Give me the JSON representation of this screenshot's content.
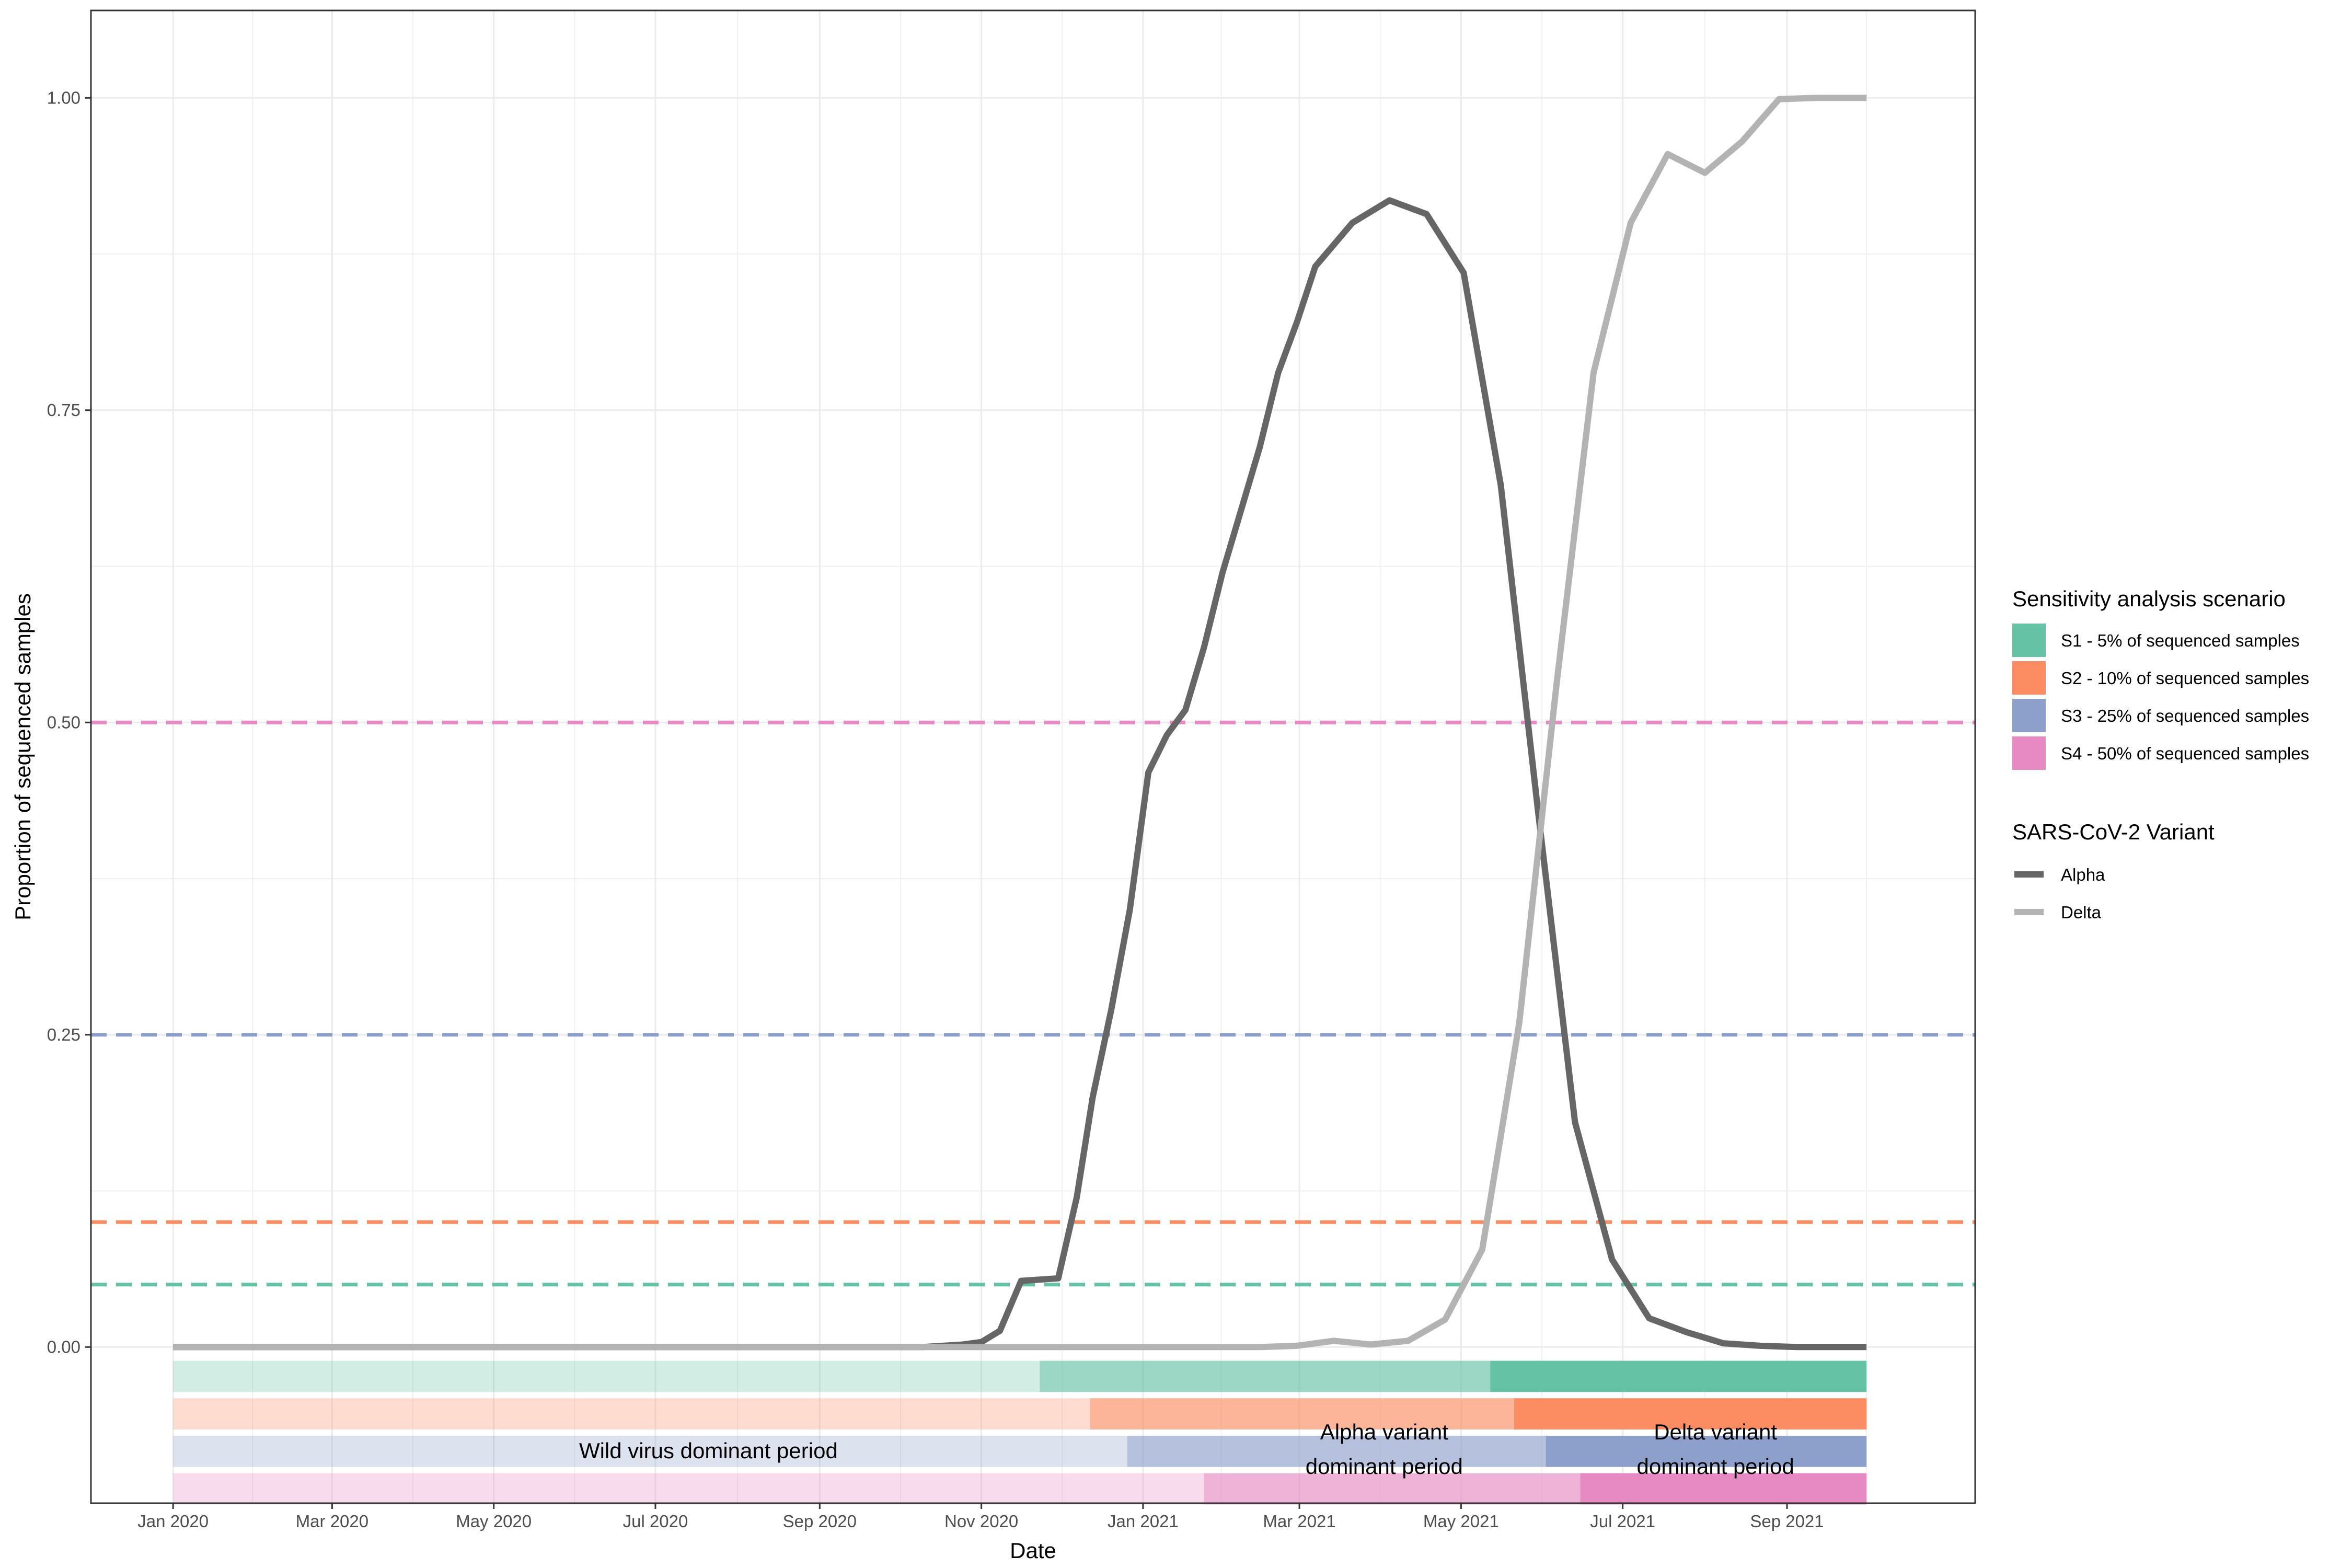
{
  "chart_data": {
    "type": "line",
    "title": "",
    "xlabel": "Date",
    "ylabel": "Proportion of sequenced samples",
    "x_range": [
      "2019-12-01",
      "2021-11-11"
    ],
    "ylim": [
      -0.125,
      1.07
    ],
    "grid": true,
    "legend_position": "right",
    "x_ticks": [
      "2020-01-01",
      "2020-03-01",
      "2020-05-01",
      "2020-07-01",
      "2020-09-01",
      "2020-11-01",
      "2021-01-01",
      "2021-03-01",
      "2021-05-01",
      "2021-07-01",
      "2021-09-01"
    ],
    "x_tick_labels": [
      "Jan 2020",
      "Mar 2020",
      "May 2020",
      "Jul 2020",
      "Sep 2020",
      "Nov 2020",
      "Jan 2021",
      "Mar 2021",
      "May 2021",
      "Jul 2021",
      "Sep 2021"
    ],
    "y_ticks": [
      0,
      0.25,
      0.5,
      0.75,
      1.0
    ],
    "y_tick_labels": [
      "0.00",
      "0.25",
      "0.50",
      "0.75",
      "1.00"
    ],
    "series": [
      {
        "name": "Alpha",
        "color": "#666666",
        "points": [
          [
            "2020-01-01",
            0
          ],
          [
            "2020-09-01",
            0
          ],
          [
            "2020-10-10",
            0
          ],
          [
            "2020-10-25",
            0.002
          ],
          [
            "2020-11-01",
            0.004
          ],
          [
            "2020-11-08",
            0.013
          ],
          [
            "2020-11-16",
            0.053
          ],
          [
            "2020-11-30",
            0.055
          ],
          [
            "2020-12-07",
            0.12
          ],
          [
            "2020-12-13",
            0.2
          ],
          [
            "2020-12-20",
            0.27
          ],
          [
            "2020-12-27",
            0.35
          ],
          [
            "2021-01-03",
            0.46
          ],
          [
            "2021-01-10",
            0.49
          ],
          [
            "2021-01-17",
            0.51
          ],
          [
            "2021-01-24",
            0.56
          ],
          [
            "2021-01-31",
            0.62
          ],
          [
            "2021-02-07",
            0.67
          ],
          [
            "2021-02-14",
            0.72
          ],
          [
            "2021-02-21",
            0.78
          ],
          [
            "2021-02-28",
            0.82
          ],
          [
            "2021-03-07",
            0.865
          ],
          [
            "2021-03-21",
            0.9
          ],
          [
            "2021-04-04",
            0.918
          ],
          [
            "2021-04-18",
            0.907
          ],
          [
            "2021-05-02",
            0.86
          ],
          [
            "2021-05-16",
            0.69
          ],
          [
            "2021-05-30",
            0.43
          ],
          [
            "2021-06-13",
            0.18
          ],
          [
            "2021-06-27",
            0.07
          ],
          [
            "2021-07-11",
            0.023
          ],
          [
            "2021-07-25",
            0.012
          ],
          [
            "2021-08-08",
            0.003
          ],
          [
            "2021-08-22",
            0.001
          ],
          [
            "2021-09-05",
            0
          ],
          [
            "2021-10-01",
            0
          ]
        ]
      },
      {
        "name": "Delta",
        "color": "#b3b3b3",
        "points": [
          [
            "2020-01-01",
            0
          ],
          [
            "2020-09-01",
            0
          ],
          [
            "2021-02-14",
            0
          ],
          [
            "2021-02-28",
            0.001
          ],
          [
            "2021-03-14",
            0.005
          ],
          [
            "2021-03-28",
            0.002
          ],
          [
            "2021-04-11",
            0.005
          ],
          [
            "2021-04-25",
            0.022
          ],
          [
            "2021-05-09",
            0.078
          ],
          [
            "2021-05-23",
            0.26
          ],
          [
            "2021-06-06",
            0.53
          ],
          [
            "2021-06-20",
            0.78
          ],
          [
            "2021-07-04",
            0.9
          ],
          [
            "2021-07-18",
            0.955
          ],
          [
            "2021-08-01",
            0.94
          ],
          [
            "2021-08-15",
            0.965
          ],
          [
            "2021-08-29",
            0.999
          ],
          [
            "2021-09-12",
            1.0
          ],
          [
            "2021-10-01",
            1.0
          ]
        ]
      }
    ],
    "threshold_lines": [
      {
        "scenario": "S1",
        "y": 0.05,
        "color": "#66c2a5"
      },
      {
        "scenario": "S2",
        "y": 0.1,
        "color": "#fc8d62"
      },
      {
        "scenario": "S3",
        "y": 0.25,
        "color": "#8da0cb"
      },
      {
        "scenario": "S4",
        "y": 0.5,
        "color": "#e78ac3"
      }
    ],
    "period_bands": [
      {
        "scenario": "S1",
        "color": "#66c2a5",
        "start": "2020-01-01",
        "alpha_start": "2020-11-23",
        "delta_start": "2021-05-12",
        "end": "2021-10-01"
      },
      {
        "scenario": "S2",
        "color": "#fc8d62",
        "start": "2020-01-01",
        "alpha_start": "2020-12-12",
        "delta_start": "2021-05-21",
        "end": "2021-10-01"
      },
      {
        "scenario": "S3",
        "color": "#8da0cb",
        "start": "2020-01-01",
        "alpha_start": "2020-12-26",
        "delta_start": "2021-06-02",
        "end": "2021-10-01"
      },
      {
        "scenario": "S4",
        "color": "#e78ac3",
        "start": "2020-01-01",
        "alpha_start": "2021-01-24",
        "delta_start": "2021-06-15",
        "end": "2021-10-01"
      }
    ],
    "period_labels": [
      {
        "lines": [
          "Wild virus dominant period"
        ],
        "date": "2020-07-21"
      },
      {
        "lines": [
          "Alpha variant",
          "dominant period"
        ],
        "date": "2021-04-02"
      },
      {
        "lines": [
          "Delta variant",
          "dominant period"
        ],
        "date": "2021-08-05"
      }
    ],
    "legend": {
      "scenario_title": "Sensitivity analysis scenario",
      "scenarios": [
        {
          "label": "S1 - 5% of sequenced samples",
          "color": "#66c2a5"
        },
        {
          "label": "S2 - 10% of sequenced samples",
          "color": "#fc8d62"
        },
        {
          "label": "S3 - 25% of sequenced samples",
          "color": "#8da0cb"
        },
        {
          "label": "S4 - 50% of sequenced samples",
          "color": "#e78ac3"
        }
      ],
      "variant_title": "SARS-CoV-2 Variant",
      "variants": [
        {
          "label": "Alpha",
          "color": "#666666"
        },
        {
          "label": "Delta",
          "color": "#b3b3b3"
        }
      ]
    }
  }
}
